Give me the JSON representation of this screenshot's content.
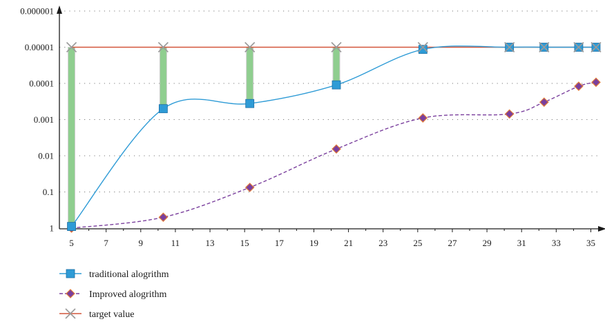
{
  "chart_data": {
    "type": "line",
    "title": "",
    "xlabel": "",
    "ylabel": "",
    "y_scale": "log-reciprocal",
    "x_ticks": [
      5,
      7,
      9,
      11,
      13,
      15,
      17,
      19,
      21,
      23,
      25,
      27,
      29,
      31,
      33,
      35
    ],
    "y_ticks": [
      "1",
      "0.1",
      "0.01",
      "0.001",
      "0.0001",
      "0.00001",
      "0.000001"
    ],
    "xlim": [
      4.3,
      35.5
    ],
    "ylim": [
      1,
      1e-06
    ],
    "grid": "horizontal dotted",
    "legend_position": "bottom-left",
    "series": [
      {
        "name": "traditional alogrithm",
        "color": "#2e9bd6",
        "line_style": "solid",
        "marker": "square",
        "x": [
          5,
          10.3,
          15.3,
          20.3,
          25.3,
          30.3,
          32.3,
          34.3,
          35.3
        ],
        "y": [
          0.9,
          0.0005,
          0.00036,
          0.00011,
          1.15e-05,
          1e-05,
          1e-05,
          1e-05,
          1e-05
        ]
      },
      {
        "name": "Improved alogrithm",
        "color": "#7a3f9d",
        "line_style": "dashed",
        "marker": "diamond",
        "x": [
          5,
          10.3,
          15.3,
          20.3,
          25.3,
          30.3,
          32.3,
          34.3,
          35.3
        ],
        "y": [
          1.0,
          0.5,
          0.075,
          0.0065,
          0.0009,
          0.0007,
          0.00033,
          0.00012,
          9.3e-05
        ]
      },
      {
        "name": "target value",
        "color": "#d2553a",
        "line_style": "solid",
        "marker": "x",
        "x": [
          5,
          10.3,
          15.3,
          20.3,
          25.3,
          30.3,
          32.3,
          34.3,
          35.3
        ],
        "y": [
          1e-05,
          1e-05,
          1e-05,
          1e-05,
          1e-05,
          1e-05,
          1e-05,
          1e-05,
          1e-05
        ]
      }
    ],
    "error_bars": {
      "color": "#8fce8f",
      "x": [
        5,
        10.3,
        15.3,
        20.3
      ],
      "from": [
        0.9,
        0.0005,
        0.00036,
        0.00011
      ],
      "to": [
        1e-05,
        1e-05,
        1e-05,
        1e-05
      ]
    }
  }
}
